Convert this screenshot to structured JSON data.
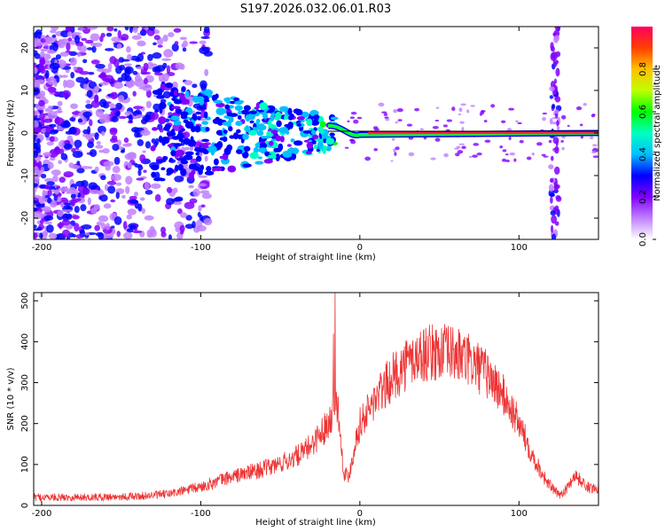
{
  "title": "S197.2026.032.06.01.R03",
  "chart_data": [
    {
      "type": "heatmap",
      "name": "spectrogram",
      "xlabel": "Height of straight line (km)",
      "ylabel": "Frequency (Hz)",
      "xlim": [
        -205,
        150
      ],
      "ylim": [
        -25,
        25
      ],
      "xticks": [
        -200,
        -100,
        0,
        100
      ],
      "yticks": [
        -20,
        -10,
        0,
        10,
        20
      ],
      "colorbar": {
        "label": "Normalized spectral amplitude",
        "range": [
          0,
          1
        ],
        "ticks": [
          "0.0",
          "0.2",
          "0.4",
          "0.6",
          "0.8"
        ],
        "colors": [
          "#ffffff",
          "#c080ff",
          "#8000ff",
          "#0000ff",
          "#00c0ff",
          "#00ffc0",
          "#00ff00",
          "#c0ff00",
          "#ffc000",
          "#ff4000",
          "#ff0060"
        ]
      },
      "tone_line": {
        "frequency_hz": 0,
        "from_km": -20,
        "to_km": 150
      }
    },
    {
      "type": "line",
      "name": "snr",
      "xlabel": "Height of straight line (km)",
      "ylabel": "SNR (10 * v/v)",
      "xlim": [
        -205,
        150
      ],
      "ylim": [
        0,
        520
      ],
      "xticks": [
        -200,
        -100,
        0,
        100
      ],
      "yticks": [
        0,
        100,
        200,
        300,
        400,
        500
      ],
      "series_color": "#ee3333",
      "envelope": {
        "x": [
          -205,
          -170,
          -140,
          -120,
          -100,
          -85,
          -70,
          -55,
          -45,
          -35,
          -28,
          -22,
          -18,
          -16,
          -14,
          -12,
          -10,
          -7,
          -3,
          0,
          10,
          20,
          30,
          40,
          50,
          60,
          70,
          80,
          90,
          100,
          110,
          118,
          125,
          130,
          135,
          140,
          145,
          150
        ],
        "y": [
          20,
          20,
          22,
          28,
          45,
          65,
          80,
          95,
          110,
          130,
          160,
          190,
          220,
          250,
          250,
          160,
          80,
          70,
          150,
          200,
          260,
          310,
          350,
          370,
          375,
          370,
          350,
          320,
          270,
          200,
          110,
          55,
          25,
          40,
          75,
          55,
          40,
          45
        ],
        "spikes": [
          {
            "x": -15.5,
            "y": 520
          },
          {
            "x": -16.5,
            "y": 420
          }
        ]
      }
    }
  ]
}
